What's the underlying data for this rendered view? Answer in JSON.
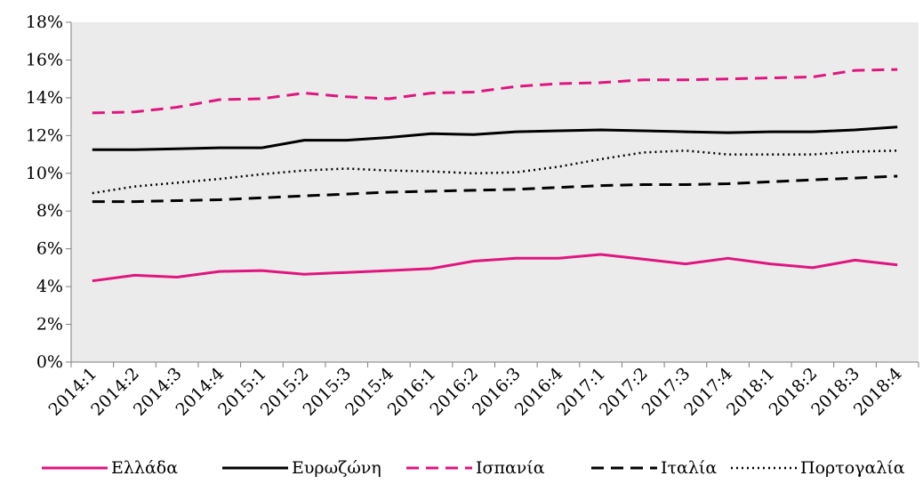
{
  "chart_data": {
    "type": "line",
    "title": "",
    "xlabel": "",
    "ylabel": "",
    "categories": [
      "2014:1",
      "2014:2",
      "2014:3",
      "2014:4",
      "2015:1",
      "2015:2",
      "2015:3",
      "2015:4",
      "2016:1",
      "2016:2",
      "2016:3",
      "2016:4",
      "2017:1",
      "2017:2",
      "2017:3",
      "2017:4",
      "2018:1",
      "2018:2",
      "2018:3",
      "2018:4"
    ],
    "ylim": [
      0,
      18
    ],
    "y_ticks": [
      0,
      2,
      4,
      6,
      8,
      10,
      12,
      14,
      16,
      18
    ],
    "y_tick_labels": [
      "0%",
      "2%",
      "4%",
      "6%",
      "8%",
      "10%",
      "12%",
      "14%",
      "16%",
      "18%"
    ],
    "grid": false,
    "plot_background": "#ebebeb",
    "legend_position": "bottom",
    "series": [
      {
        "name": "Ελλάδα",
        "color": "#e0157f",
        "style": "solid",
        "values": [
          4.3,
          4.6,
          4.5,
          4.8,
          4.85,
          4.65,
          4.75,
          4.85,
          4.95,
          5.35,
          5.5,
          5.5,
          5.7,
          5.45,
          5.2,
          5.5,
          5.2,
          5.0,
          5.4,
          5.15
        ]
      },
      {
        "name": "Ευρωζώνη",
        "color": "#000000",
        "style": "solid",
        "values": [
          11.25,
          11.25,
          11.3,
          11.35,
          11.35,
          11.75,
          11.75,
          11.9,
          12.1,
          12.05,
          12.2,
          12.25,
          12.3,
          12.25,
          12.2,
          12.15,
          12.2,
          12.2,
          12.3,
          12.45
        ]
      },
      {
        "name": "Ισπανία",
        "color": "#e0157f",
        "style": "dashed",
        "values": [
          13.2,
          13.25,
          13.5,
          13.9,
          13.95,
          14.25,
          14.05,
          13.95,
          14.25,
          14.3,
          14.6,
          14.75,
          14.8,
          14.95,
          14.95,
          15.0,
          15.05,
          15.1,
          15.45,
          15.5
        ]
      },
      {
        "name": "Ιταλία",
        "color": "#000000",
        "style": "dashed",
        "values": [
          8.5,
          8.5,
          8.55,
          8.6,
          8.7,
          8.8,
          8.9,
          9.0,
          9.05,
          9.1,
          9.15,
          9.25,
          9.35,
          9.4,
          9.4,
          9.45,
          9.55,
          9.65,
          9.75,
          9.85
        ]
      },
      {
        "name": "Πορτογαλία",
        "color": "#000000",
        "style": "dotted",
        "values": [
          8.95,
          9.3,
          9.5,
          9.7,
          9.95,
          10.15,
          10.25,
          10.15,
          10.1,
          10.0,
          10.05,
          10.35,
          10.75,
          11.1,
          11.2,
          11.0,
          11.0,
          11.0,
          11.15,
          11.2
        ]
      }
    ]
  }
}
